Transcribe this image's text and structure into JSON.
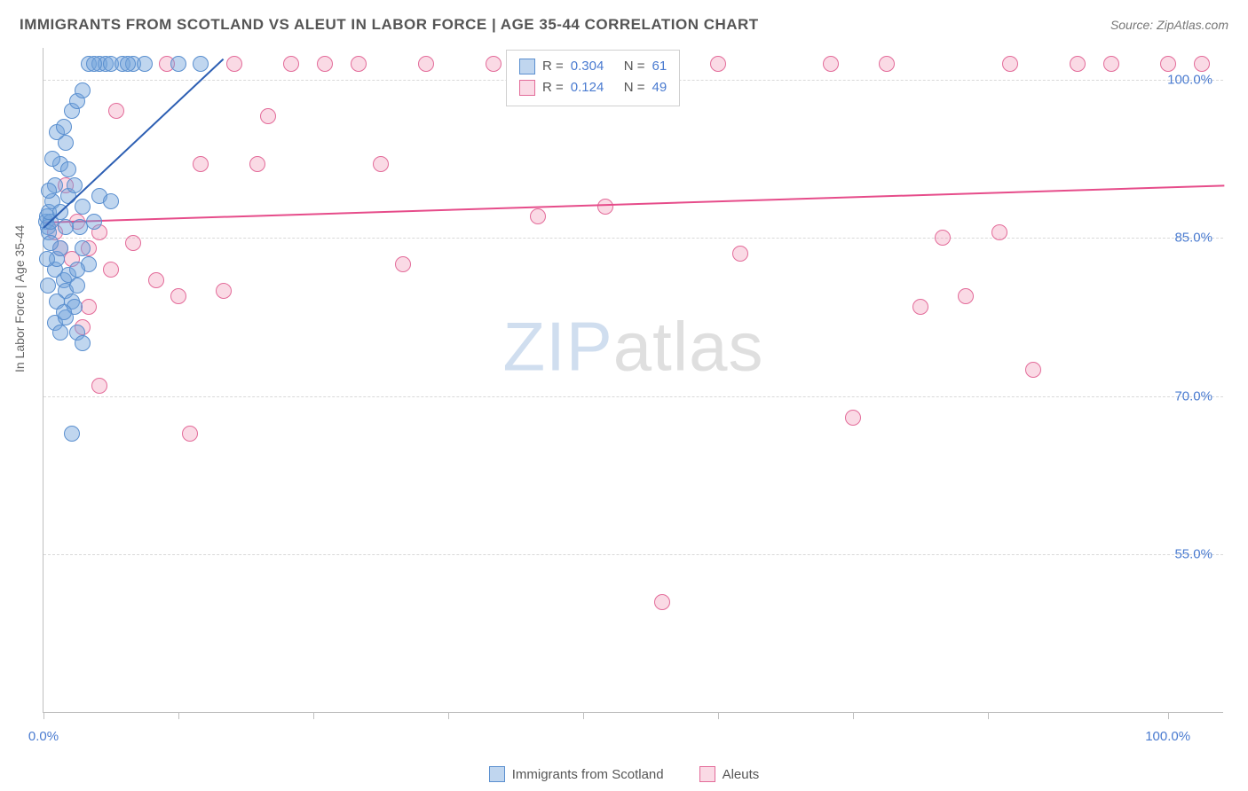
{
  "header": {
    "title": "IMMIGRANTS FROM SCOTLAND VS ALEUT IN LABOR FORCE | AGE 35-44 CORRELATION CHART",
    "source": "Source: ZipAtlas.com",
    "title_color": "#555555",
    "source_color": "#777777"
  },
  "axes": {
    "y_label": "In Labor Force | Age 35-44",
    "y_label_color": "#666666",
    "x_min": 0,
    "x_max": 105,
    "y_min": 40,
    "y_max": 103,
    "y_ticks": [
      {
        "v": 55,
        "label": "55.0%"
      },
      {
        "v": 70,
        "label": "70.0%"
      },
      {
        "v": 85,
        "label": "85.0%"
      },
      {
        "v": 100,
        "label": "100.0%"
      }
    ],
    "x_ticks": [
      0,
      12,
      24,
      36,
      48,
      60,
      72,
      84,
      100
    ],
    "x_labels": [
      {
        "v": 0,
        "label": "0.0%"
      },
      {
        "v": 100,
        "label": "100.0%"
      }
    ],
    "tick_label_color": "#4a7bd0"
  },
  "series": {
    "blue": {
      "label": "Immigrants from Scotland",
      "fill": "rgba(115, 165, 220, 0.45)",
      "stroke": "#5a8fcf",
      "r_value": "0.304",
      "n_value": "61",
      "marker_radius": 9,
      "points": [
        [
          0.2,
          86.5
        ],
        [
          0.3,
          87.0
        ],
        [
          0.4,
          86.0
        ],
        [
          0.5,
          85.5
        ],
        [
          0.6,
          86.5
        ],
        [
          0.5,
          87.5
        ],
        [
          1.0,
          82.0
        ],
        [
          1.2,
          83.0
        ],
        [
          1.5,
          84.0
        ],
        [
          1.8,
          81.0
        ],
        [
          2.0,
          80.0
        ],
        [
          2.2,
          81.5
        ],
        [
          2.5,
          79.0
        ],
        [
          2.8,
          78.5
        ],
        [
          3.0,
          80.5
        ],
        [
          0.8,
          88.5
        ],
        [
          1.0,
          90.0
        ],
        [
          1.5,
          92.0
        ],
        [
          2.0,
          94.0
        ],
        [
          2.5,
          97.0
        ],
        [
          3.0,
          98.0
        ],
        [
          3.5,
          99.0
        ],
        [
          4.0,
          101.5
        ],
        [
          5.0,
          101.5
        ],
        [
          5.5,
          101.5
        ],
        [
          6.0,
          101.5
        ],
        [
          7.0,
          101.5
        ],
        [
          8.0,
          101.5
        ],
        [
          12.0,
          101.5
        ],
        [
          14.0,
          101.5
        ],
        [
          1.2,
          95.0
        ],
        [
          1.8,
          95.5
        ],
        [
          2.2,
          89.0
        ],
        [
          0.5,
          89.5
        ],
        [
          3.2,
          86.0
        ],
        [
          3.5,
          84.0
        ],
        [
          4.0,
          82.5
        ],
        [
          1.0,
          77.0
        ],
        [
          1.5,
          76.0
        ],
        [
          2.0,
          77.5
        ],
        [
          3.0,
          76.0
        ],
        [
          3.5,
          75.0
        ],
        [
          0.8,
          92.5
        ],
        [
          1.5,
          87.5
        ],
        [
          2.2,
          91.5
        ],
        [
          2.8,
          90.0
        ],
        [
          3.5,
          88.0
        ],
        [
          4.5,
          86.5
        ],
        [
          5.0,
          89.0
        ],
        [
          6.0,
          88.5
        ],
        [
          2.5,
          66.5
        ],
        [
          3.0,
          82.0
        ],
        [
          0.3,
          83.0
        ],
        [
          0.6,
          84.5
        ],
        [
          4.5,
          101.5
        ],
        [
          7.5,
          101.5
        ],
        [
          9.0,
          101.5
        ],
        [
          2.0,
          86.0
        ],
        [
          1.2,
          79.0
        ],
        [
          1.8,
          78.0
        ],
        [
          0.4,
          80.5
        ]
      ],
      "trend": {
        "x1": 0,
        "y1": 86.0,
        "x2": 16,
        "y2": 102.0,
        "color": "#2d5fb3",
        "width": 2
      }
    },
    "pink": {
      "label": "Aleuts",
      "fill": "rgba(240, 150, 180, 0.35)",
      "stroke": "#e36b99",
      "r_value": "0.124",
      "n_value": "49",
      "marker_radius": 9,
      "points": [
        [
          3.0,
          86.5
        ],
        [
          4.0,
          84.0
        ],
        [
          5.0,
          85.5
        ],
        [
          6.0,
          82.0
        ],
        [
          8.0,
          84.5
        ],
        [
          10.0,
          81.0
        ],
        [
          12.0,
          79.5
        ],
        [
          14.0,
          92.0
        ],
        [
          16.0,
          80.0
        ],
        [
          17.0,
          101.5
        ],
        [
          19.0,
          92.0
        ],
        [
          20.0,
          96.5
        ],
        [
          22.0,
          101.5
        ],
        [
          25.0,
          101.5
        ],
        [
          28.0,
          101.5
        ],
        [
          30.0,
          92.0
        ],
        [
          32.0,
          82.5
        ],
        [
          34.0,
          101.5
        ],
        [
          40.0,
          101.5
        ],
        [
          44.0,
          87.0
        ],
        [
          47.0,
          101.5
        ],
        [
          50.0,
          88.0
        ],
        [
          52.0,
          101.5
        ],
        [
          55.0,
          50.5
        ],
        [
          60.0,
          101.5
        ],
        [
          62.0,
          83.5
        ],
        [
          70.0,
          101.5
        ],
        [
          72.0,
          68.0
        ],
        [
          75.0,
          101.5
        ],
        [
          78.0,
          78.5
        ],
        [
          80.0,
          85.0
        ],
        [
          82.0,
          79.5
        ],
        [
          85.0,
          85.5
        ],
        [
          86.0,
          101.5
        ],
        [
          88.0,
          72.5
        ],
        [
          92.0,
          101.5
        ],
        [
          95.0,
          101.5
        ],
        [
          100.0,
          101.5
        ],
        [
          103.0,
          101.5
        ],
        [
          5.0,
          71.0
        ],
        [
          4.0,
          78.5
        ],
        [
          13.0,
          66.5
        ],
        [
          11.0,
          101.5
        ],
        [
          6.5,
          97.0
        ],
        [
          1.5,
          84.0
        ],
        [
          2.5,
          83.0
        ],
        [
          3.5,
          76.5
        ],
        [
          2.0,
          90.0
        ],
        [
          1.0,
          85.5
        ]
      ],
      "trend": {
        "x1": 0,
        "y1": 86.5,
        "x2": 105,
        "y2": 90.0,
        "color": "#e64c8a",
        "width": 2
      }
    }
  },
  "legend_box": {
    "r_label": "R =",
    "n_label": "N =",
    "text_color": "#555555",
    "value_color": "#4a7bd0"
  },
  "watermark": {
    "zip": "ZIP",
    "atlas": "atlas"
  }
}
